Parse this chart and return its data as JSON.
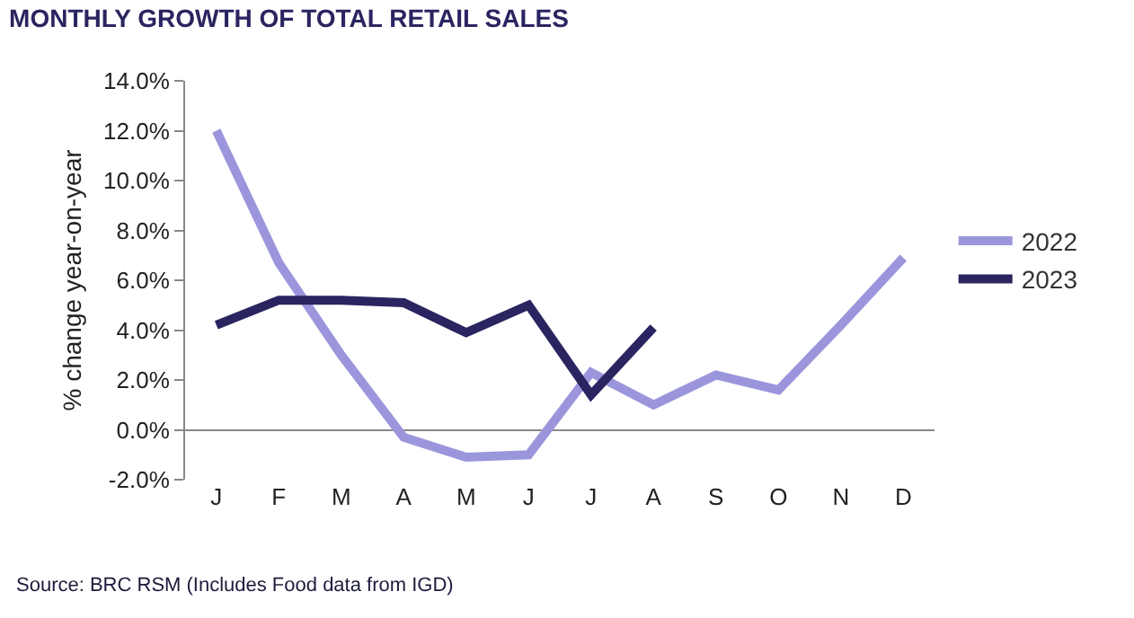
{
  "chart_data": {
    "type": "line",
    "title": "MONTHLY GROWTH OF TOTAL RETAIL SALES",
    "ylabel": "% change year-on-year",
    "categories": [
      "J",
      "F",
      "M",
      "A",
      "M",
      "J",
      "J",
      "A",
      "S",
      "O",
      "N",
      "D"
    ],
    "series": [
      {
        "name": "2022",
        "color": "#9b96dc",
        "values": [
          12.0,
          6.7,
          3.0,
          -0.3,
          -1.1,
          -1.0,
          2.3,
          1.0,
          2.2,
          1.6,
          4.2,
          6.9
        ]
      },
      {
        "name": "2023",
        "color": "#2a2560",
        "values": [
          4.2,
          5.2,
          5.2,
          5.1,
          3.9,
          5.0,
          1.4,
          4.1,
          null,
          null,
          null,
          null
        ]
      }
    ],
    "ylim": [
      -2,
      14
    ],
    "yticks": [
      {
        "value": -2,
        "label": "-2.0%"
      },
      {
        "value": 0,
        "label": "0.0%"
      },
      {
        "value": 2,
        "label": "2.0%"
      },
      {
        "value": 4,
        "label": "4.0%"
      },
      {
        "value": 6,
        "label": "6.0%"
      },
      {
        "value": 8,
        "label": "8.0%"
      },
      {
        "value": 10,
        "label": "10.0%"
      },
      {
        "value": 12,
        "label": "12.0%"
      },
      {
        "value": 14,
        "label": "14.0%"
      }
    ],
    "grid": false,
    "legend": "right",
    "marker": "none",
    "line_style": "solid",
    "annotations": [
      "Source: BRC RSM (Includes Food data from IGD)"
    ]
  }
}
